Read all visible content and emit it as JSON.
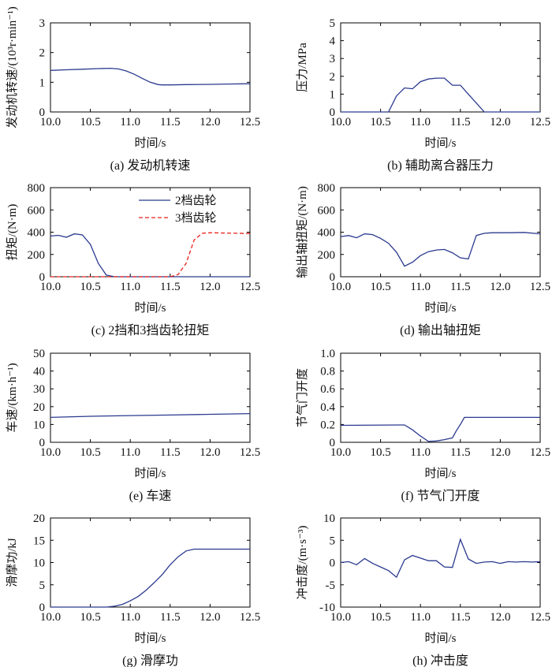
{
  "panels": [
    {
      "id": "a",
      "caption": "(a) 发动机转速",
      "xlabel": "时间/s",
      "ylabel": "发动机转速/(10³r·min⁻¹)",
      "xlim": [
        10.0,
        12.5
      ],
      "ylim": [
        0,
        3
      ],
      "xticks": [
        "10.0",
        "10.5",
        "11.0",
        "11.5",
        "12.0",
        "12.5"
      ],
      "yticks": [
        "0",
        "1",
        "2",
        "3"
      ]
    },
    {
      "id": "b",
      "caption": "(b) 辅助离合器压力",
      "xlabel": "时间/s",
      "ylabel": "压力/MPa",
      "xlim": [
        10.0,
        12.5
      ],
      "ylim": [
        0,
        5
      ],
      "xticks": [
        "10.0",
        "10.5",
        "11.0",
        "11.5",
        "12.0",
        "12.5"
      ],
      "yticks": [
        "0",
        "1",
        "2",
        "3",
        "4",
        "5"
      ]
    },
    {
      "id": "c",
      "caption": "(c) 2挡和3挡齿轮扭矩",
      "xlabel": "时间/s",
      "ylabel": "扭矩/(N·m)",
      "xlim": [
        10.0,
        12.5
      ],
      "ylim": [
        0,
        800
      ],
      "xticks": [
        "10.0",
        "10.5",
        "11.0",
        "11.5",
        "12.0",
        "12.5"
      ],
      "yticks": [
        "0",
        "200",
        "400",
        "600",
        "800"
      ],
      "legend": [
        "2档齿轮",
        "3档齿轮"
      ]
    },
    {
      "id": "d",
      "caption": "(d) 输出轴扭矩",
      "xlabel": "时间/s",
      "ylabel": "输出轴扭矩/(N·m)",
      "xlim": [
        10.0,
        12.5
      ],
      "ylim": [
        0,
        800
      ],
      "xticks": [
        "10.0",
        "10.5",
        "11.0",
        "11.5",
        "12.0",
        "12.5"
      ],
      "yticks": [
        "0",
        "200",
        "400",
        "600",
        "800"
      ]
    },
    {
      "id": "e",
      "caption": "(e) 车速",
      "xlabel": "时间/s",
      "ylabel": "车速/(km·h⁻¹)",
      "xlim": [
        10.0,
        12.5
      ],
      "ylim": [
        0,
        50
      ],
      "xticks": [
        "10.0",
        "10.5",
        "11.0",
        "11.5",
        "12.0",
        "12.5"
      ],
      "yticks": [
        "0",
        "10",
        "20",
        "30",
        "40",
        "50"
      ]
    },
    {
      "id": "f",
      "caption": "(f) 节气门开度",
      "xlabel": "时间/s",
      "ylabel": "节气门开度",
      "xlim": [
        10.0,
        12.5
      ],
      "ylim": [
        0,
        1.0
      ],
      "xticks": [
        "10.0",
        "10.5",
        "11.0",
        "11.5",
        "12.0",
        "12.5"
      ],
      "yticks": [
        "0",
        "0.2",
        "0.4",
        "0.6",
        "0.8",
        "1.0"
      ]
    },
    {
      "id": "g",
      "caption": "(g) 滑摩功",
      "xlabel": "时间/s",
      "ylabel": "滑摩功/kJ",
      "xlim": [
        10.0,
        12.5
      ],
      "ylim": [
        0,
        20
      ],
      "xticks": [
        "10.0",
        "10.5",
        "11.0",
        "11.5",
        "12.0",
        "12.5"
      ],
      "yticks": [
        "0",
        "5",
        "10",
        "15",
        "20"
      ]
    },
    {
      "id": "h",
      "caption": "(h) 冲击度",
      "xlabel": "时间/s",
      "ylabel": "冲击度/(m·s⁻³)",
      "xlim": [
        10.0,
        12.5
      ],
      "ylim": [
        -10,
        10
      ],
      "xticks": [
        "10.0",
        "10.5",
        "11.0",
        "11.5",
        "12.0",
        "12.5"
      ],
      "yticks": [
        "-10",
        "-5",
        "0",
        "5",
        "10"
      ]
    }
  ],
  "chart_data": [
    {
      "type": "line",
      "panel": "a",
      "series": [
        {
          "color": "#2b3a8f",
          "dash": "solid",
          "x": [
            10.0,
            10.2,
            10.4,
            10.6,
            10.75,
            10.85,
            10.95,
            11.05,
            11.15,
            11.25,
            11.35,
            11.4,
            11.5,
            11.7,
            12.0,
            12.2,
            12.5
          ],
          "y": [
            1.4,
            1.42,
            1.44,
            1.46,
            1.47,
            1.45,
            1.38,
            1.27,
            1.13,
            1.0,
            0.92,
            0.91,
            0.91,
            0.92,
            0.93,
            0.94,
            0.95
          ]
        }
      ]
    },
    {
      "type": "line",
      "panel": "b",
      "series": [
        {
          "color": "#2b3a8f",
          "dash": "solid",
          "x": [
            10.0,
            10.6,
            10.7,
            10.8,
            10.9,
            11.0,
            11.1,
            11.2,
            11.3,
            11.4,
            11.5,
            11.6,
            11.7,
            11.8,
            11.9,
            12.5
          ],
          "y": [
            0,
            0,
            0.9,
            1.35,
            1.3,
            1.7,
            1.85,
            1.9,
            1.9,
            1.5,
            1.5,
            1.0,
            0.5,
            0,
            0,
            0
          ]
        }
      ]
    },
    {
      "type": "line",
      "panel": "c",
      "series": [
        {
          "name": "2档齿轮",
          "color": "#2b3a8f",
          "dash": "solid",
          "x": [
            10.0,
            10.1,
            10.2,
            10.3,
            10.4,
            10.5,
            10.6,
            10.7,
            10.8,
            10.9,
            11.0,
            12.5
          ],
          "y": [
            365,
            372,
            355,
            385,
            375,
            290,
            120,
            15,
            0,
            0,
            0,
            0
          ]
        },
        {
          "name": "3档齿轮",
          "color": "#e8211c",
          "dash": "dashed",
          "x": [
            10.0,
            11.5,
            11.6,
            11.7,
            11.8,
            11.9,
            12.0,
            12.2,
            12.5
          ],
          "y": [
            0,
            0,
            20,
            120,
            330,
            390,
            395,
            392,
            388
          ]
        }
      ]
    },
    {
      "type": "line",
      "panel": "d",
      "series": [
        {
          "color": "#2b3a8f",
          "dash": "solid",
          "x": [
            10.0,
            10.1,
            10.2,
            10.3,
            10.4,
            10.5,
            10.6,
            10.7,
            10.8,
            10.9,
            11.0,
            11.1,
            11.2,
            11.3,
            11.4,
            11.5,
            11.6,
            11.7,
            11.8,
            11.9,
            12.0,
            12.1,
            12.3,
            12.5
          ],
          "y": [
            360,
            370,
            350,
            385,
            378,
            345,
            300,
            220,
            95,
            130,
            190,
            225,
            240,
            245,
            215,
            170,
            160,
            370,
            390,
            395,
            395,
            395,
            398,
            385
          ]
        }
      ]
    },
    {
      "type": "line",
      "panel": "e",
      "series": [
        {
          "color": "#2b3a8f",
          "dash": "solid",
          "x": [
            10.0,
            10.5,
            11.0,
            11.5,
            12.0,
            12.5
          ],
          "y": [
            14.0,
            14.6,
            15.0,
            15.3,
            15.7,
            16.1
          ]
        }
      ]
    },
    {
      "type": "line",
      "panel": "f",
      "series": [
        {
          "color": "#2b3a8f",
          "dash": "solid",
          "x": [
            10.0,
            10.8,
            10.9,
            11.0,
            11.1,
            11.2,
            11.3,
            11.4,
            11.45,
            11.5,
            11.55,
            12.0,
            12.5
          ],
          "y": [
            0.19,
            0.195,
            0.14,
            0.07,
            0.01,
            0.015,
            0.03,
            0.05,
            0.13,
            0.2,
            0.28,
            0.28,
            0.28
          ]
        }
      ]
    },
    {
      "type": "line",
      "panel": "g",
      "series": [
        {
          "color": "#2b3a8f",
          "dash": "solid",
          "x": [
            10.0,
            10.7,
            10.8,
            10.9,
            11.0,
            11.1,
            11.2,
            11.3,
            11.4,
            11.5,
            11.6,
            11.7,
            11.8,
            11.9,
            12.0,
            12.5
          ],
          "y": [
            0,
            0,
            0.2,
            0.6,
            1.4,
            2.4,
            3.8,
            5.5,
            7.3,
            9.5,
            11.3,
            12.6,
            13.0,
            13.0,
            13.0,
            13.0
          ]
        }
      ]
    },
    {
      "type": "line",
      "panel": "h",
      "series": [
        {
          "color": "#2b3a8f",
          "dash": "solid",
          "x": [
            10.0,
            10.1,
            10.2,
            10.3,
            10.4,
            10.5,
            10.6,
            10.7,
            10.8,
            10.9,
            11.0,
            11.1,
            11.2,
            11.3,
            11.4,
            11.5,
            11.6,
            11.7,
            11.8,
            11.9,
            12.0,
            12.1,
            12.2,
            12.3,
            12.4,
            12.5
          ],
          "y": [
            0.0,
            0.2,
            -0.5,
            0.9,
            -0.2,
            -1.0,
            -1.8,
            -3.3,
            0.6,
            1.6,
            1.0,
            0.4,
            0.4,
            -1.0,
            -1.1,
            5.2,
            0.8,
            -0.2,
            0.1,
            0.2,
            -0.2,
            0.2,
            0.1,
            0.2,
            0.1,
            0.2
          ]
        }
      ]
    }
  ]
}
